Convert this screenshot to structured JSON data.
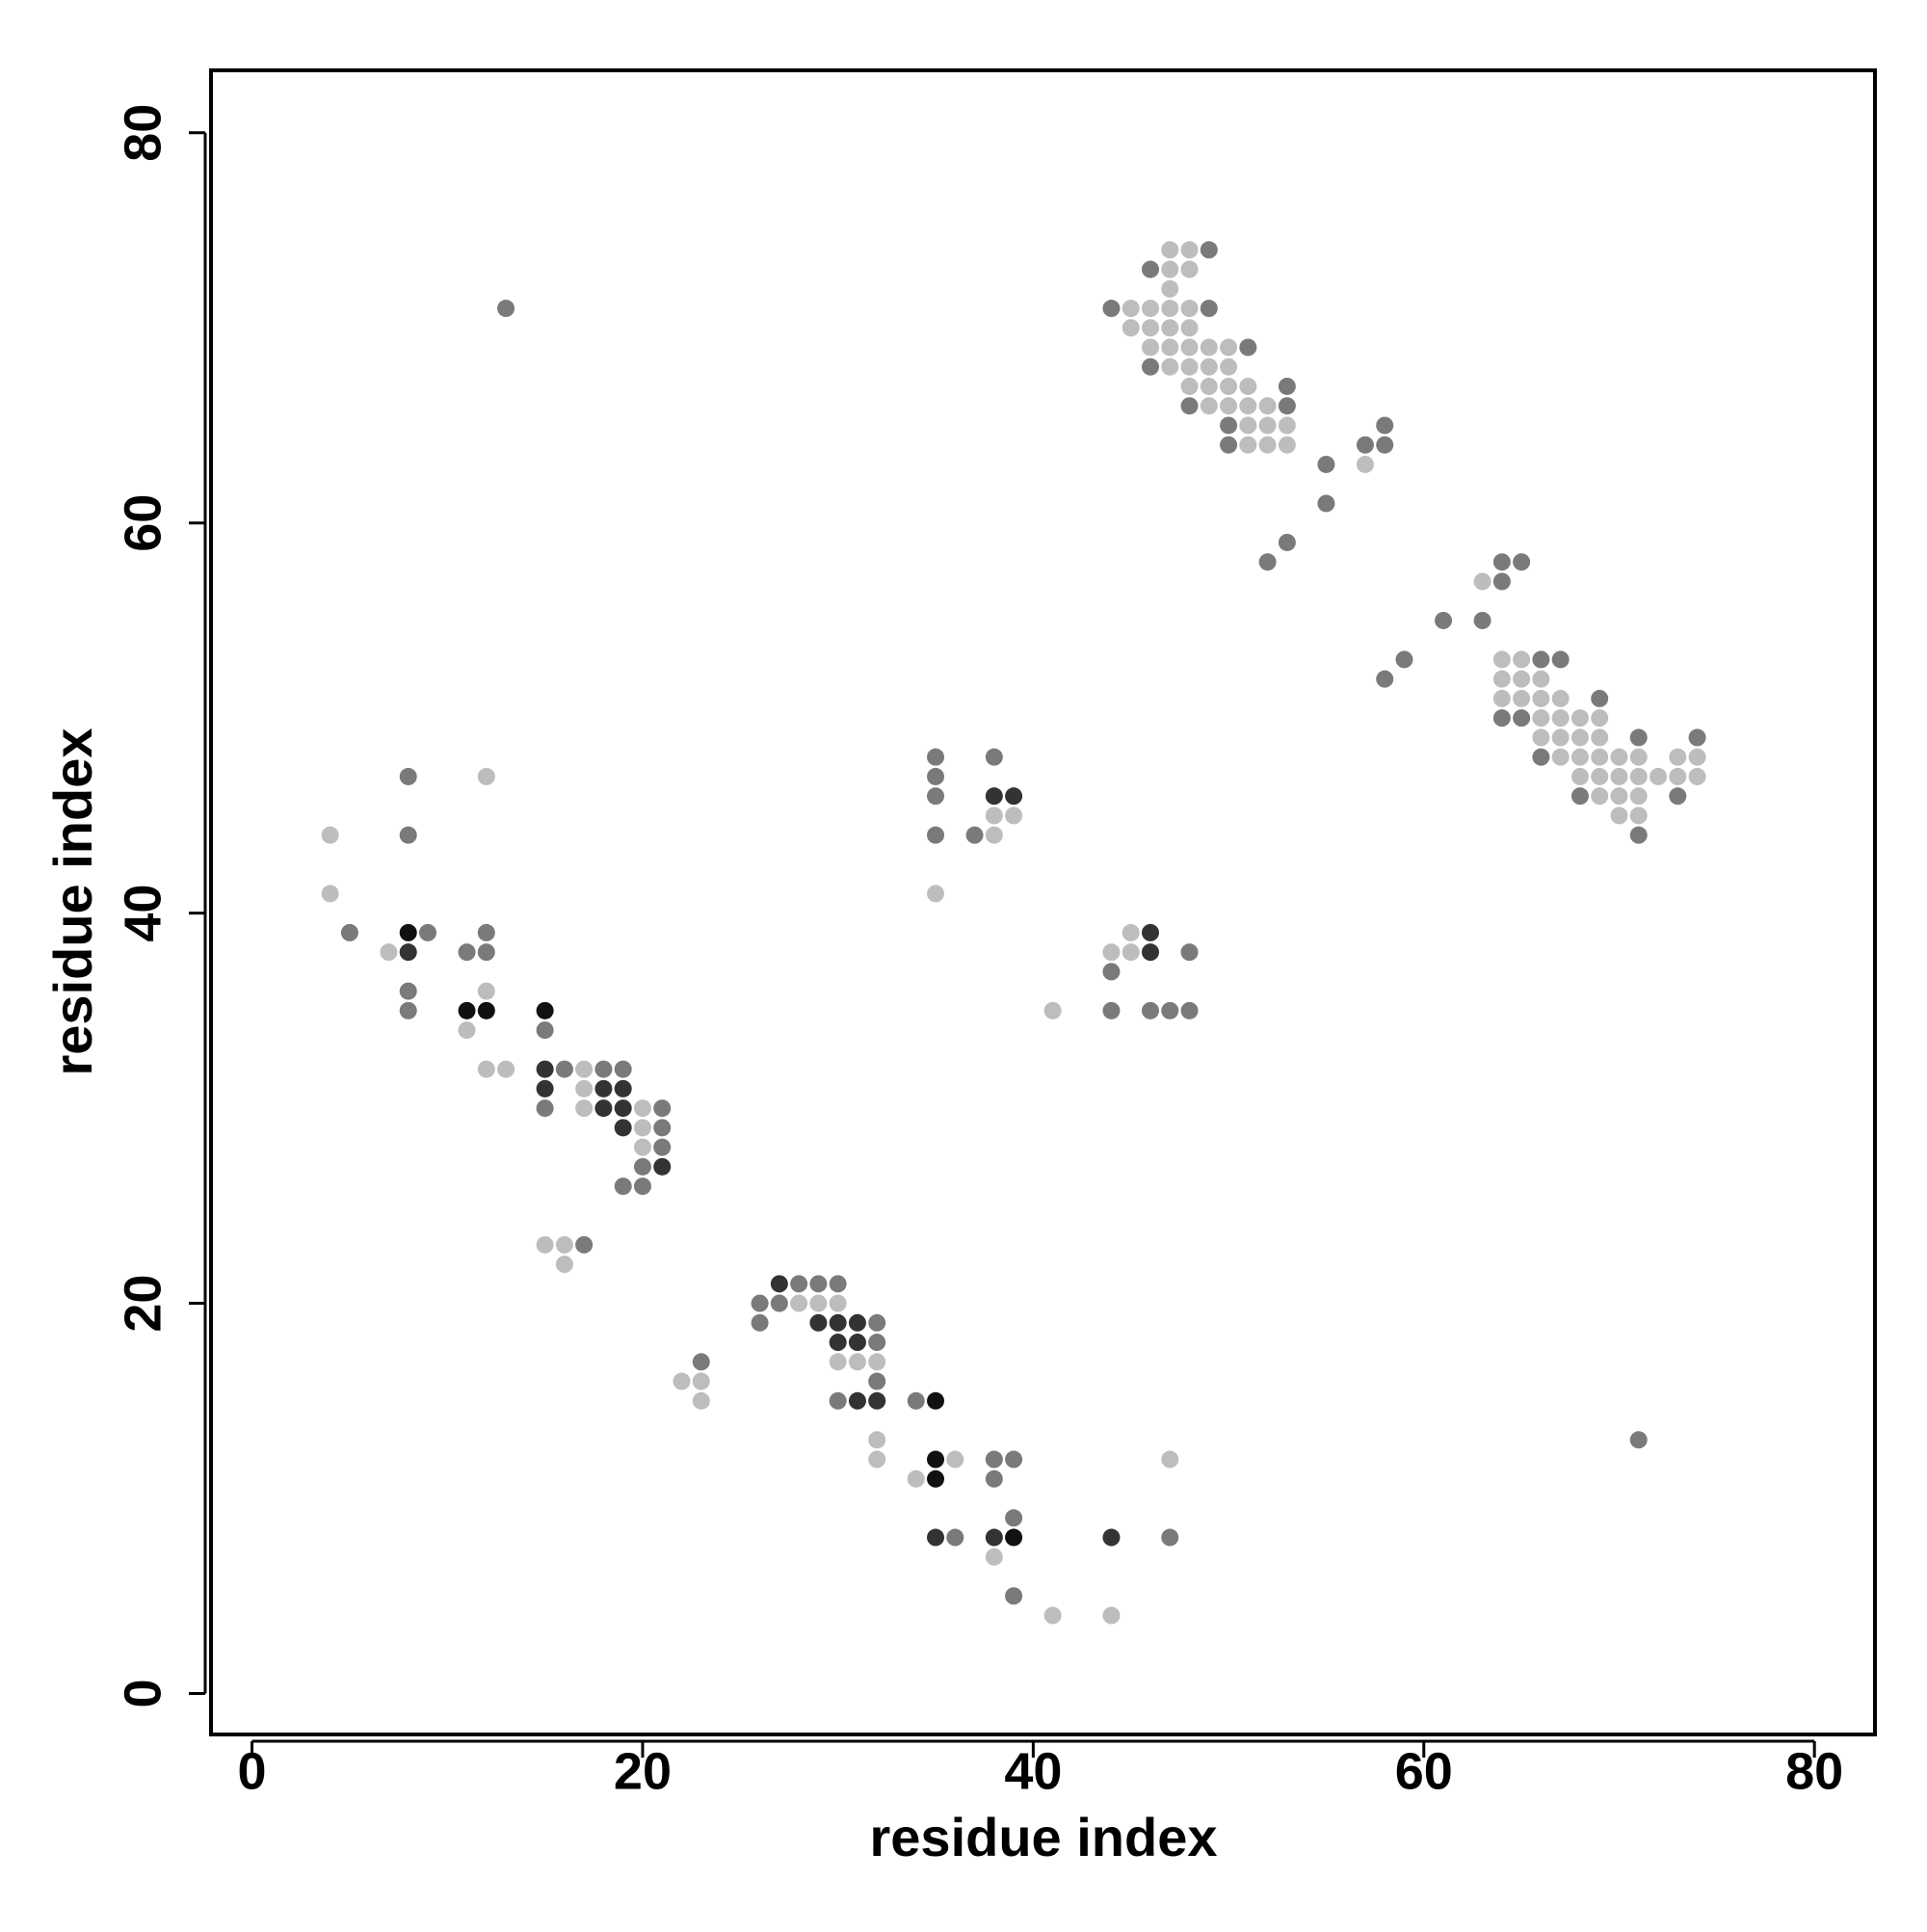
{
  "chart_data": {
    "type": "scatter",
    "x_label": "residue index",
    "y_label": "residue index",
    "xlim": [
      -2.1,
      83.1
    ],
    "ylim": [
      -2.1,
      83.2
    ],
    "xticks": [
      0,
      20,
      40,
      60,
      80
    ],
    "yticks": [
      0,
      20,
      40,
      60,
      80
    ],
    "grid": false,
    "series": [
      {
        "color": "#bdbdbd",
        "x": [
          47,
          48,
          47,
          48,
          47,
          45,
          46,
          47,
          48,
          45,
          46,
          47,
          48,
          46,
          47,
          48,
          49,
          50,
          47,
          48,
          49,
          50,
          48,
          49,
          50,
          51,
          49,
          50,
          51,
          52,
          51,
          52,
          53,
          51,
          52,
          53,
          57,
          63,
          64,
          65,
          64,
          65,
          66,
          64,
          65,
          66,
          67,
          66,
          67,
          68,
          69,
          66,
          67,
          68,
          69,
          67,
          68,
          69,
          70,
          71,
          73,
          74,
          68,
          69,
          70,
          71,
          72,
          73,
          74,
          69,
          70,
          71,
          70,
          71,
          35,
          38,
          39,
          38,
          45,
          44,
          45,
          41,
          4,
          4,
          12,
          7,
          12,
          11,
          12,
          13,
          17,
          17,
          17,
          20,
          20,
          20,
          15,
          16,
          16,
          28,
          29,
          30,
          30,
          31,
          32,
          32,
          32,
          22,
          23,
          23,
          36,
          34,
          38,
          41,
          44,
          47
        ],
        "y": [
          74,
          74,
          73,
          73,
          72,
          71,
          71,
          71,
          71,
          70,
          70,
          70,
          70,
          69,
          69,
          69,
          69,
          69,
          68,
          68,
          68,
          68,
          67,
          67,
          67,
          67,
          66,
          66,
          66,
          66,
          65,
          65,
          65,
          64,
          64,
          64,
          63,
          57,
          53,
          53,
          52,
          52,
          52,
          51,
          51,
          51,
          51,
          50,
          50,
          50,
          50,
          49,
          49,
          49,
          49,
          48,
          48,
          48,
          48,
          48,
          48,
          48,
          47,
          47,
          47,
          47,
          47,
          47,
          47,
          46,
          46,
          46,
          45,
          45,
          41,
          45,
          45,
          44,
          39,
          38,
          38,
          35,
          44,
          41,
          47,
          38,
          36,
          34,
          32,
          32,
          32,
          31,
          30,
          30,
          29,
          28,
          23,
          23,
          22,
          20,
          20,
          20,
          17,
          17,
          17,
          13,
          12,
          16,
          16,
          15,
          12,
          11,
          7,
          4,
          4,
          12
        ]
      },
      {
        "color": "#7a7a7a",
        "x": [
          49,
          46,
          44,
          49,
          51,
          46,
          53,
          48,
          53,
          50,
          50,
          58,
          57,
          58,
          55,
          55,
          53,
          52,
          64,
          65,
          64,
          61,
          63,
          59,
          58,
          66,
          67,
          69,
          64,
          65,
          71,
          74,
          66,
          68,
          73,
          71,
          71,
          35,
          35,
          35,
          35,
          38,
          37,
          48,
          44,
          44,
          46,
          47,
          48,
          5,
          8,
          8,
          13,
          9,
          8,
          8,
          11,
          12,
          12,
          15,
          16,
          18,
          19,
          15,
          21,
          21,
          21,
          20,
          19,
          20,
          17,
          26,
          28,
          29,
          30,
          27,
          26,
          32,
          32,
          32,
          30,
          23,
          34,
          38,
          39,
          38,
          39,
          36,
          39,
          47
        ],
        "y": [
          74,
          73,
          71,
          71,
          69,
          68,
          67,
          66,
          66,
          65,
          64,
          65,
          64,
          64,
          63,
          61,
          59,
          58,
          58,
          58,
          57,
          55,
          55,
          53,
          52,
          53,
          53,
          51,
          50,
          50,
          49,
          49,
          48,
          46,
          46,
          44,
          13,
          48,
          47,
          46,
          44,
          48,
          44,
          38,
          37,
          35,
          35,
          35,
          35,
          39,
          47,
          44,
          71,
          39,
          36,
          35,
          38,
          39,
          38,
          34,
          32,
          32,
          32,
          30,
          30,
          29,
          28,
          27,
          26,
          26,
          23,
          20,
          21,
          21,
          21,
          20,
          19,
          19,
          18,
          16,
          15,
          17,
          15,
          12,
          12,
          11,
          9,
          8,
          5,
          8
        ]
      },
      {
        "color": "#333333",
        "x": [
          38,
          39,
          46,
          46,
          8,
          15,
          15,
          18,
          19,
          18,
          19,
          19,
          21,
          27,
          29,
          30,
          31,
          30,
          31,
          31,
          32,
          35,
          38,
          44
        ],
        "y": [
          46,
          46,
          39,
          38,
          38,
          32,
          31,
          31,
          31,
          30,
          30,
          29,
          27,
          21,
          19,
          19,
          19,
          18,
          18,
          15,
          15,
          8,
          8,
          8
        ]
      },
      {
        "color": "#111111",
        "x": [
          8,
          11,
          12,
          15,
          35,
          35,
          35,
          39
        ],
        "y": [
          39,
          35,
          35,
          35,
          15,
          12,
          11,
          8
        ]
      }
    ]
  }
}
